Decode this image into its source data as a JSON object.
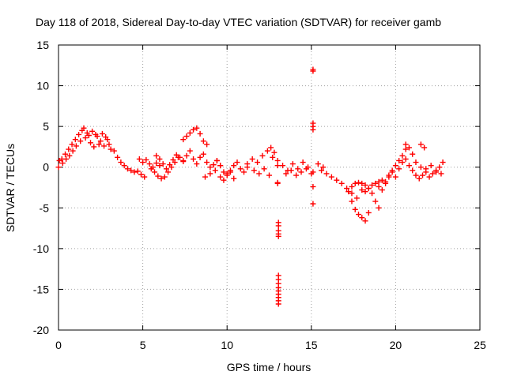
{
  "colors": {
    "background": "#ffffff",
    "axis": "#000000",
    "grid": "#a0a0a0",
    "series": "#ff0000"
  },
  "chart_data": {
    "type": "scatter",
    "title": "Day 118 of 2018, Sidereal Day-to-day VTEC variation (SDTVAR) for receiver gamb",
    "xlabel": "GPS time / hours",
    "ylabel": "SDTVAR / TECUs",
    "xlim": [
      0,
      25
    ],
    "ylim": [
      -20,
      15
    ],
    "xticks": [
      0,
      5,
      10,
      15,
      20,
      25
    ],
    "yticks": [
      -20,
      -15,
      -10,
      -5,
      0,
      5,
      10,
      15
    ],
    "grid": true,
    "marker": "+",
    "series": [
      {
        "name": "SDTVAR",
        "segments": [
          {
            "x": [
              0.0,
              0.2,
              0.4,
              0.6,
              0.8,
              1.0,
              1.2,
              1.4
            ],
            "y": [
              0.0,
              1.0,
              1.6,
              2.2,
              2.8,
              3.4,
              4.0,
              4.5
            ]
          },
          {
            "x": [
              0.05,
              0.25,
              0.45,
              0.65,
              0.85,
              1.05,
              1.3
            ],
            "y": [
              0.8,
              0.5,
              1.0,
              1.4,
              2.0,
              2.6,
              3.2
            ]
          },
          {
            "x": [
              1.5,
              1.7,
              1.9,
              2.1,
              2.3,
              2.5,
              2.7,
              2.9,
              3.1
            ],
            "y": [
              4.8,
              4.2,
              3.0,
              2.5,
              3.8,
              3.2,
              2.6,
              3.4,
              2.2
            ]
          },
          {
            "x": [
              1.6,
              1.8,
              2.0,
              2.2,
              2.4,
              2.6,
              2.8,
              3.0
            ],
            "y": [
              3.6,
              3.9,
              4.4,
              4.0,
              2.8,
              4.1,
              3.7,
              2.8
            ]
          },
          {
            "x": [
              3.3,
              3.5,
              3.7,
              3.9,
              4.1,
              4.3,
              4.5,
              4.7,
              4.9,
              5.1
            ],
            "y": [
              2.0,
              1.2,
              0.6,
              0.2,
              -0.2,
              -0.4,
              -0.6,
              -0.5,
              -0.9,
              -1.2
            ]
          },
          {
            "x": [
              4.8,
              5.0,
              5.2,
              5.4,
              5.6,
              5.8,
              6.0
            ],
            "y": [
              1.0,
              0.6,
              0.9,
              0.4,
              0.0,
              0.5,
              0.2
            ]
          },
          {
            "x": [
              5.5,
              5.7,
              5.9,
              6.1,
              6.3,
              6.5,
              6.7,
              6.9,
              7.1
            ],
            "y": [
              -0.2,
              -0.6,
              -1.1,
              -1.4,
              -1.2,
              -0.6,
              0.0,
              0.6,
              1.2
            ]
          },
          {
            "x": [
              5.8,
              6.0,
              6.2,
              6.4,
              6.6,
              6.8,
              7.0,
              7.2,
              7.4
            ],
            "y": [
              1.4,
              1.0,
              0.4,
              -0.2,
              0.3,
              0.9,
              1.5,
              1.2,
              0.7
            ]
          },
          {
            "x": [
              7.4,
              7.6,
              7.8,
              8.0,
              8.2,
              8.4,
              8.6,
              8.8
            ],
            "y": [
              3.4,
              3.8,
              4.2,
              4.6,
              4.8,
              4.1,
              3.2,
              2.8
            ]
          },
          {
            "x": [
              7.4,
              7.6,
              7.8,
              8.0,
              8.2,
              8.4,
              8.6,
              8.8,
              9.0,
              9.2,
              9.4
            ],
            "y": [
              0.8,
              1.4,
              2.0,
              1.0,
              0.4,
              1.2,
              1.6,
              0.6,
              0.0,
              0.3,
              0.8
            ]
          },
          {
            "x": [
              8.7,
              9.0,
              9.3,
              9.6
            ],
            "y": [
              -1.2,
              -0.8,
              -0.4,
              0.2
            ]
          },
          {
            "x": [
              9.4,
              9.6,
              9.8,
              10.0,
              10.2,
              10.4,
              10.6,
              10.8,
              11.0,
              11.2
            ],
            "y": [
              0.8,
              0.2,
              -0.6,
              -0.8,
              -0.4,
              0.2,
              0.6,
              -0.2,
              -0.6,
              0.0
            ]
          },
          {
            "x": [
              9.6,
              9.8,
              10.0,
              10.2,
              10.4
            ],
            "y": [
              -1.2,
              -1.6,
              -1.0,
              -0.6,
              -1.4
            ]
          },
          {
            "x": [
              11.2,
              11.5,
              11.8,
              12.1,
              12.4,
              12.7,
              13.0
            ],
            "y": [
              0.4,
              1.0,
              0.6,
              1.4,
              2.0,
              1.2,
              0.2
            ]
          },
          {
            "x": [
              12.6,
              12.8,
              13.0
            ],
            "y": [
              2.4,
              1.8,
              0.8
            ]
          },
          {
            "x": [
              11.6,
              11.9,
              12.2,
              12.5
            ],
            "y": [
              -0.4,
              -0.8,
              -0.2,
              -1.0
            ]
          },
          {
            "x": [
              13.0,
              13.0
            ],
            "y": [
              -1.9,
              -2.0
            ]
          },
          {
            "x": [
              13.05,
              13.05,
              13.05,
              13.05,
              13.05
            ],
            "y": [
              -6.8,
              -7.2,
              -7.8,
              -8.2,
              -8.5
            ]
          },
          {
            "x": [
              13.05,
              13.05,
              13.05,
              13.05,
              13.05,
              13.05,
              13.05,
              13.05,
              13.05
            ],
            "y": [
              -13.3,
              -13.8,
              -14.3,
              -14.8,
              -15.2,
              -15.6,
              -16.0,
              -16.4,
              -16.8
            ]
          },
          {
            "x": [
              13.3,
              13.6,
              13.9,
              14.2,
              14.5,
              14.8,
              15.1,
              15.4,
              15.7
            ],
            "y": [
              0.2,
              -0.4,
              0.4,
              -0.2,
              0.6,
              0.0,
              -0.6,
              0.4,
              0.0
            ]
          },
          {
            "x": [
              13.5,
              13.8,
              14.1,
              14.4,
              14.7,
              15.0
            ],
            "y": [
              -0.8,
              -0.4,
              -1.0,
              -0.6,
              -0.2,
              -0.8
            ]
          },
          {
            "x": [
              15.1,
              15.1
            ],
            "y": [
              12.0,
              11.8
            ]
          },
          {
            "x": [
              15.1,
              15.1,
              15.1
            ],
            "y": [
              5.4,
              5.0,
              4.6
            ]
          },
          {
            "x": [
              15.1,
              15.1
            ],
            "y": [
              -2.4,
              -4.5
            ]
          },
          {
            "x": [
              15.6,
              15.9,
              16.2,
              16.5,
              16.8,
              17.1,
              17.4,
              17.7
            ],
            "y": [
              -0.4,
              -0.8,
              -1.2,
              -1.6,
              -2.0,
              -2.6,
              -3.2,
              -3.8
            ]
          },
          {
            "x": [
              17.2,
              17.4,
              17.6,
              17.8,
              18.0,
              18.2,
              18.4
            ],
            "y": [
              -3.0,
              -4.2,
              -5.2,
              -5.8,
              -6.2,
              -6.6,
              -5.6
            ]
          },
          {
            "x": [
              17.4,
              17.6,
              17.8,
              18.0,
              18.2,
              18.4,
              18.6,
              18.8,
              19.0
            ],
            "y": [
              -2.4,
              -2.0,
              -1.9,
              -2.0,
              -2.2,
              -2.6,
              -3.2,
              -4.2,
              -5.0
            ]
          },
          {
            "x": [
              18.0,
              18.2,
              18.4,
              18.6,
              18.8,
              19.0,
              19.2
            ],
            "y": [
              -2.8,
              -3.0,
              -2.6,
              -2.2,
              -2.0,
              -1.8,
              -1.6
            ]
          },
          {
            "x": [
              19.0,
              19.2,
              19.4,
              19.6,
              19.8,
              20.0,
              20.2,
              20.4,
              20.6
            ],
            "y": [
              -2.4,
              -2.8,
              -2.0,
              -1.2,
              -0.4,
              0.2,
              0.8,
              1.4,
              2.2
            ]
          },
          {
            "x": [
              19.4,
              19.6,
              19.8,
              20.0,
              20.2,
              20.4,
              20.6,
              20.8
            ],
            "y": [
              -1.8,
              -1.0,
              -0.6,
              -1.2,
              -0.2,
              0.6,
              1.0,
              0.2
            ]
          },
          {
            "x": [
              20.6,
              20.8,
              21.0
            ],
            "y": [
              2.8,
              2.4,
              1.6
            ]
          },
          {
            "x": [
              21.0,
              21.2,
              21.4,
              21.6,
              21.8,
              22.0,
              22.2,
              22.4,
              22.6,
              22.8
            ],
            "y": [
              -0.4,
              -1.0,
              -1.4,
              -1.0,
              -0.6,
              -1.2,
              -0.8,
              -0.4,
              0.0,
              0.6
            ]
          },
          {
            "x": [
              21.2,
              21.5,
              21.8,
              22.1,
              22.4,
              22.7
            ],
            "y": [
              0.6,
              0.0,
              -0.2,
              0.2,
              -0.6,
              -0.8
            ]
          },
          {
            "x": [
              21.5,
              21.7
            ],
            "y": [
              2.8,
              2.4
            ]
          }
        ]
      }
    ]
  }
}
